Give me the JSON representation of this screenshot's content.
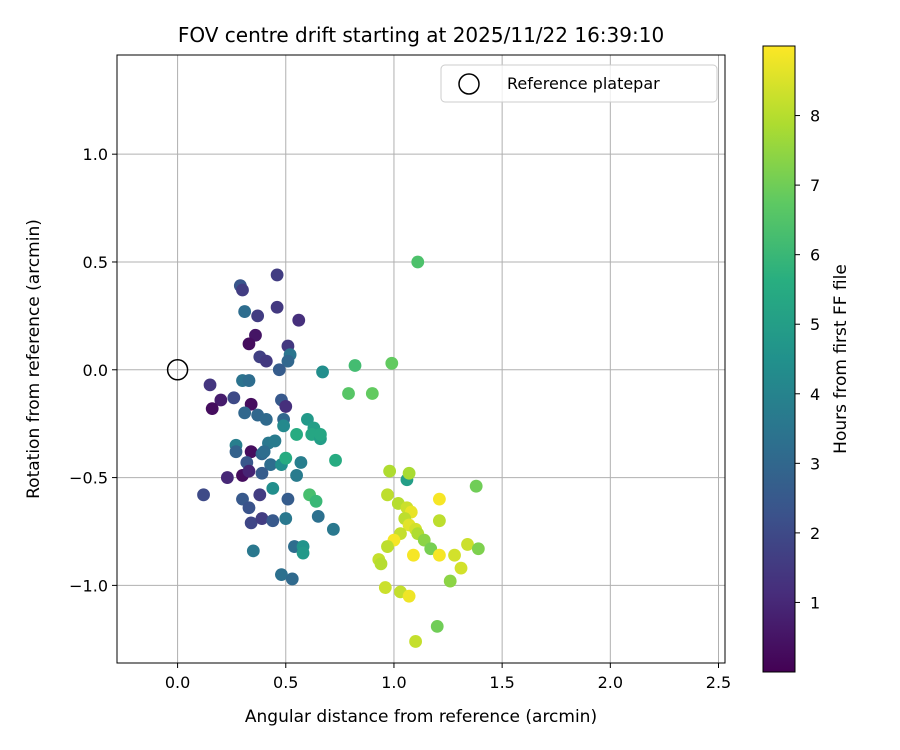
{
  "chart_data": {
    "type": "scatter",
    "title": "FOV centre drift starting at 2025/11/22 16:39:10",
    "xlabel": "Angular distance from reference (arcmin)",
    "ylabel": "Rotation from reference (arcmin)",
    "xlim": [
      -0.28,
      2.53
    ],
    "ylim": [
      -1.36,
      1.46
    ],
    "xticks": [
      0.0,
      0.5,
      1.0,
      1.5,
      2.0,
      2.5
    ],
    "xtick_labels": [
      "0.0",
      "0.5",
      "1.0",
      "1.5",
      "2.0",
      "2.5"
    ],
    "yticks": [
      -1.0,
      -0.5,
      0.0,
      0.5,
      1.0
    ],
    "ytick_labels": [
      "−1.0",
      "−0.5",
      "0.0",
      "0.5",
      "1.0"
    ],
    "grid": true,
    "legend": {
      "label": "Reference platepar",
      "placement": "top-right"
    },
    "reference_point": {
      "x": 0.0,
      "y": 0.0
    },
    "colorbar": {
      "label": "Hours from first FF file",
      "range": [
        0.0,
        9.0
      ],
      "ticks": [
        1,
        2,
        3,
        4,
        5,
        6,
        7,
        8
      ],
      "tick_labels": [
        "1",
        "2",
        "3",
        "4",
        "5",
        "6",
        "7",
        "8"
      ],
      "colormap": "viridis"
    },
    "series": [
      {
        "name": "FOV centre",
        "points": [
          [
            0.46,
            0.44,
            1.6
          ],
          [
            0.29,
            0.39,
            2.4
          ],
          [
            0.3,
            0.37,
            1.6
          ],
          [
            0.46,
            0.29,
            1.5
          ],
          [
            0.31,
            0.27,
            3.2
          ],
          [
            0.37,
            0.25,
            1.6
          ],
          [
            0.56,
            0.23,
            1.2
          ],
          [
            0.36,
            0.16,
            0.5
          ],
          [
            0.33,
            0.12,
            0.3
          ],
          [
            0.51,
            0.11,
            1.5
          ],
          [
            0.38,
            0.06,
            1.7
          ],
          [
            0.41,
            0.04,
            1.5
          ],
          [
            0.52,
            0.07,
            3.5
          ],
          [
            0.51,
            0.04,
            3.0
          ],
          [
            0.47,
            0.0,
            2.6
          ],
          [
            0.67,
            -0.01,
            4.4
          ],
          [
            0.15,
            -0.07,
            1.4
          ],
          [
            0.3,
            -0.05,
            3.4
          ],
          [
            0.33,
            -0.05,
            3.2
          ],
          [
            0.2,
            -0.14,
            0.7
          ],
          [
            0.26,
            -0.13,
            2.0
          ],
          [
            0.16,
            -0.18,
            0.3
          ],
          [
            0.34,
            -0.16,
            0.3
          ],
          [
            0.48,
            -0.14,
            2.5
          ],
          [
            0.5,
            -0.17,
            1.2
          ],
          [
            0.31,
            -0.2,
            3.0
          ],
          [
            0.37,
            -0.21,
            3.0
          ],
          [
            0.41,
            -0.23,
            3.1
          ],
          [
            0.49,
            -0.23,
            3.0
          ],
          [
            0.49,
            -0.26,
            4.2
          ],
          [
            0.6,
            -0.23,
            4.8
          ],
          [
            0.63,
            -0.27,
            5.0
          ],
          [
            0.55,
            -0.3,
            5.5
          ],
          [
            0.62,
            -0.3,
            5.3
          ],
          [
            0.66,
            -0.32,
            5.0
          ],
          [
            0.66,
            -0.3,
            5.3
          ],
          [
            0.27,
            -0.35,
            3.8
          ],
          [
            0.42,
            -0.34,
            3.6
          ],
          [
            0.45,
            -0.33,
            3.7
          ],
          [
            0.27,
            -0.38,
            2.8
          ],
          [
            0.34,
            -0.38,
            0.3
          ],
          [
            0.39,
            -0.39,
            3.0
          ],
          [
            0.4,
            -0.38,
            3.2
          ],
          [
            0.43,
            -0.44,
            3.2
          ],
          [
            0.32,
            -0.43,
            2.4
          ],
          [
            0.48,
            -0.44,
            4.4
          ],
          [
            0.5,
            -0.41,
            5.5
          ],
          [
            0.57,
            -0.43,
            3.8
          ],
          [
            0.73,
            -0.42,
            5.5
          ],
          [
            0.23,
            -0.5,
            1.0
          ],
          [
            0.3,
            -0.49,
            0.3
          ],
          [
            0.33,
            -0.47,
            0.9
          ],
          [
            0.39,
            -0.48,
            2.6
          ],
          [
            0.55,
            -0.49,
            3.7
          ],
          [
            0.12,
            -0.58,
            2.0
          ],
          [
            0.3,
            -0.6,
            2.5
          ],
          [
            0.38,
            -0.58,
            1.6
          ],
          [
            0.44,
            -0.55,
            4.4
          ],
          [
            0.51,
            -0.6,
            2.6
          ],
          [
            0.61,
            -0.58,
            6.3
          ],
          [
            0.64,
            -0.61,
            6.0
          ],
          [
            0.33,
            -0.64,
            2.3
          ],
          [
            0.34,
            -0.71,
            1.9
          ],
          [
            0.39,
            -0.69,
            1.6
          ],
          [
            0.44,
            -0.7,
            2.5
          ],
          [
            0.5,
            -0.69,
            3.6
          ],
          [
            0.65,
            -0.68,
            3.3
          ],
          [
            0.72,
            -0.74,
            3.6
          ],
          [
            0.35,
            -0.84,
            3.6
          ],
          [
            0.54,
            -0.82,
            3.2
          ],
          [
            0.58,
            -0.82,
            4.6
          ],
          [
            0.58,
            -0.85,
            4.8
          ],
          [
            0.48,
            -0.95,
            3.3
          ],
          [
            0.53,
            -0.97,
            3.1
          ],
          [
            1.11,
            0.5,
            6.4
          ],
          [
            0.82,
            0.02,
            6.2
          ],
          [
            0.99,
            0.03,
            6.8
          ],
          [
            0.79,
            -0.11,
            6.6
          ],
          [
            0.9,
            -0.11,
            6.8
          ],
          [
            1.06,
            -0.51,
            5.0
          ],
          [
            1.38,
            -0.54,
            7.0
          ],
          [
            0.98,
            -0.47,
            7.9
          ],
          [
            1.07,
            -0.48,
            7.8
          ],
          [
            0.97,
            -0.58,
            8.1
          ],
          [
            1.21,
            -0.6,
            8.9
          ],
          [
            1.02,
            -0.62,
            8.0
          ],
          [
            1.06,
            -0.64,
            8.3
          ],
          [
            1.08,
            -0.66,
            8.7
          ],
          [
            1.05,
            -0.69,
            8.1
          ],
          [
            1.07,
            -0.72,
            8.6
          ],
          [
            1.1,
            -0.74,
            8.4
          ],
          [
            1.21,
            -0.7,
            8.1
          ],
          [
            1.03,
            -0.76,
            8.2
          ],
          [
            1.11,
            -0.76,
            7.9
          ],
          [
            1.14,
            -0.79,
            7.4
          ],
          [
            1.17,
            -0.83,
            7.1
          ],
          [
            1.0,
            -0.79,
            8.9
          ],
          [
            0.97,
            -0.82,
            8.1
          ],
          [
            1.09,
            -0.86,
            8.9
          ],
          [
            1.21,
            -0.86,
            8.9
          ],
          [
            1.28,
            -0.86,
            8.4
          ],
          [
            1.34,
            -0.81,
            8.3
          ],
          [
            1.39,
            -0.83,
            7.2
          ],
          [
            0.93,
            -0.88,
            8.2
          ],
          [
            0.94,
            -0.9,
            8.0
          ],
          [
            1.31,
            -0.92,
            8.4
          ],
          [
            1.26,
            -0.98,
            7.4
          ],
          [
            0.96,
            -1.01,
            8.3
          ],
          [
            1.03,
            -1.03,
            8.2
          ],
          [
            1.07,
            -1.05,
            8.8
          ],
          [
            1.2,
            -1.19,
            7.0
          ],
          [
            1.1,
            -1.26,
            8.2
          ]
        ]
      }
    ]
  }
}
